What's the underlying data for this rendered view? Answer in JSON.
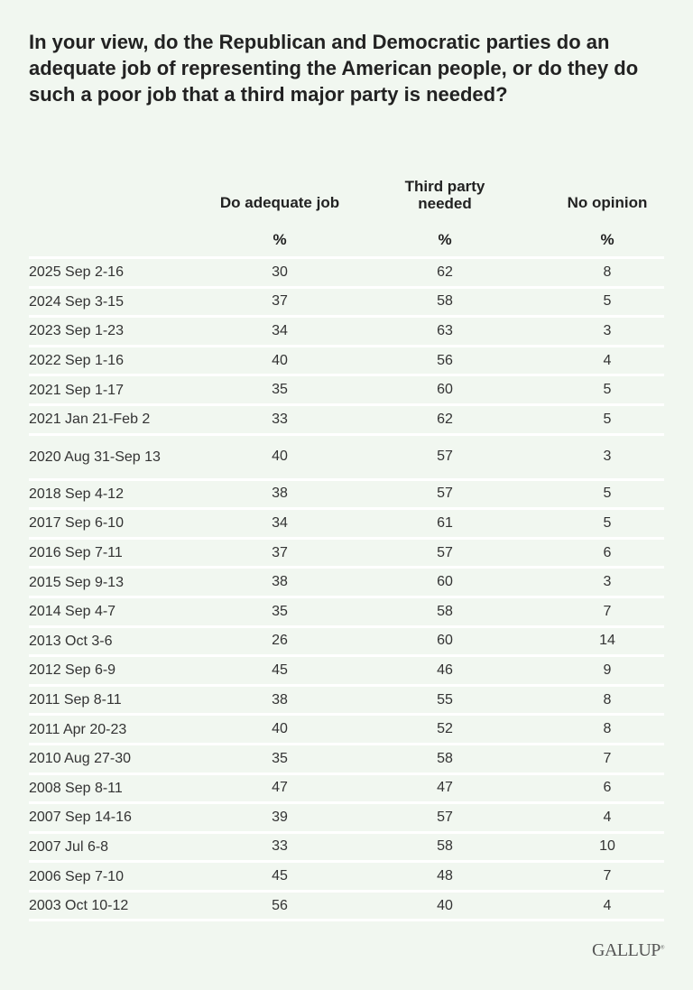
{
  "title": "In your view, do the Republican and Democratic parties do an adequate job of representing the American people, or do they do such a poor job that a third major party is needed?",
  "chart_data": {
    "type": "table",
    "columns": [
      "Do adequate job",
      "Third party needed",
      "No opinion"
    ],
    "units": [
      "%",
      "%",
      "%"
    ],
    "rows": [
      {
        "label": "2025 Sep 2-16",
        "values": [
          30,
          62,
          8
        ]
      },
      {
        "label": "2024 Sep 3-15",
        "values": [
          37,
          58,
          5
        ]
      },
      {
        "label": "2023 Sep 1-23",
        "values": [
          34,
          63,
          3
        ]
      },
      {
        "label": "2022 Sep 1-16",
        "values": [
          40,
          56,
          4
        ]
      },
      {
        "label": "2021 Sep 1-17",
        "values": [
          35,
          60,
          5
        ]
      },
      {
        "label": "2021 Jan 21-Feb 2",
        "values": [
          33,
          62,
          5
        ]
      },
      {
        "label": "2020 Aug 31-Sep 13",
        "values": [
          40,
          57,
          3
        ]
      },
      {
        "label": "2018 Sep 4-12",
        "values": [
          38,
          57,
          5
        ]
      },
      {
        "label": "2017 Sep 6-10",
        "values": [
          34,
          61,
          5
        ]
      },
      {
        "label": "2016 Sep 7-11",
        "values": [
          37,
          57,
          6
        ]
      },
      {
        "label": "2015 Sep 9-13",
        "values": [
          38,
          60,
          3
        ]
      },
      {
        "label": "2014 Sep 4-7",
        "values": [
          35,
          58,
          7
        ]
      },
      {
        "label": "2013 Oct 3-6",
        "values": [
          26,
          60,
          14
        ]
      },
      {
        "label": "2012 Sep 6-9",
        "values": [
          45,
          46,
          9
        ]
      },
      {
        "label": "2011 Sep 8-11",
        "values": [
          38,
          55,
          8
        ]
      },
      {
        "label": "2011 Apr 20-23",
        "values": [
          40,
          52,
          8
        ]
      },
      {
        "label": "2010 Aug 27-30",
        "values": [
          35,
          58,
          7
        ]
      },
      {
        "label": "2008 Sep 8-11",
        "values": [
          47,
          47,
          6
        ]
      },
      {
        "label": "2007 Sep 14-16",
        "values": [
          39,
          57,
          4
        ]
      },
      {
        "label": "2007 Jul 6-8",
        "values": [
          33,
          58,
          10
        ]
      },
      {
        "label": "2006 Sep 7-10",
        "values": [
          45,
          48,
          7
        ]
      },
      {
        "label": "2003 Oct 10-12",
        "values": [
          56,
          40,
          4
        ]
      }
    ]
  },
  "logo": "GALLUP",
  "colors": {
    "background": "#f1f7f0",
    "divider": "#ffffff",
    "text": "#333333"
  }
}
